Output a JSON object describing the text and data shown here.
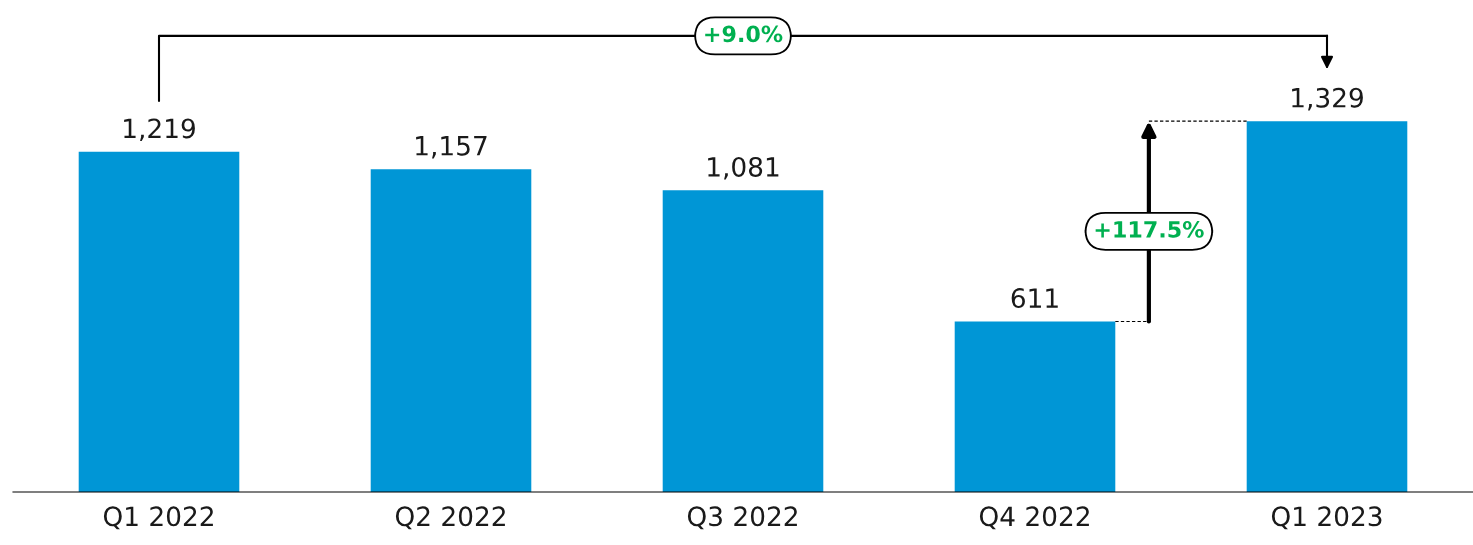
{
  "chart_data": {
    "type": "bar",
    "categories": [
      "Q1 2022",
      "Q2 2022",
      "Q3 2022",
      "Q4 2022",
      "Q1 2023"
    ],
    "values": [
      1219,
      1157,
      1081,
      611,
      1329
    ],
    "value_labels": [
      "1,219",
      "1,157",
      "1,081",
      "611",
      "1,329"
    ],
    "color": "#0096d6",
    "grid": false,
    "legend": false,
    "annotations": [
      "+9.0%",
      "+117.5%"
    ]
  }
}
